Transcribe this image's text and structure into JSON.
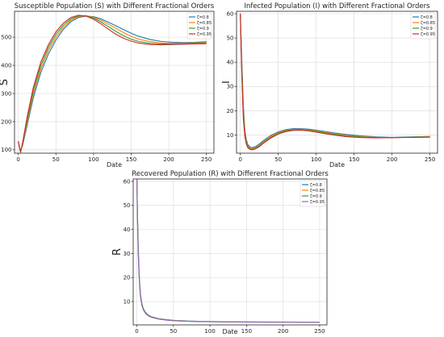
{
  "chart_data": [
    {
      "type": "line",
      "title": "Susceptible Population (S) with Different Fractional Orders",
      "xlabel": "Date",
      "ylabel": "S",
      "xlim": [
        -5,
        260
      ],
      "ylim": [
        88,
        592
      ],
      "xticks": [
        0,
        50,
        100,
        150,
        200,
        250
      ],
      "yticks": [
        100,
        200,
        300,
        400,
        500
      ],
      "grid": true,
      "legend": "top-right",
      "series": [
        {
          "name": "ζ=0.8",
          "color": "#1f77b4",
          "x": [
            0,
            3,
            6,
            12,
            20,
            30,
            40,
            50,
            60,
            70,
            80,
            90,
            100,
            110,
            120,
            130,
            140,
            150,
            160,
            175,
            190,
            205,
            220,
            235,
            250
          ],
          "y": [
            130,
            95,
            118,
            190,
            285,
            375,
            440,
            490,
            528,
            555,
            570,
            575,
            573,
            565,
            553,
            540,
            527,
            514,
            503,
            492,
            485,
            482,
            481,
            482,
            484
          ]
        },
        {
          "name": "ζ=0.85",
          "color": "#ff7f0e",
          "x": [
            0,
            3,
            6,
            12,
            20,
            30,
            40,
            50,
            60,
            70,
            80,
            90,
            100,
            110,
            120,
            130,
            140,
            150,
            160,
            175,
            190,
            205,
            220,
            235,
            250
          ],
          "y": [
            130,
            93,
            122,
            200,
            298,
            388,
            452,
            500,
            535,
            560,
            573,
            576,
            571,
            560,
            546,
            531,
            516,
            503,
            493,
            484,
            479,
            478,
            479,
            480,
            481
          ]
        },
        {
          "name": "ζ=0.9",
          "color": "#2ca02c",
          "x": [
            0,
            3,
            6,
            12,
            20,
            30,
            40,
            50,
            60,
            70,
            80,
            90,
            100,
            110,
            120,
            130,
            140,
            150,
            160,
            175,
            190,
            205,
            220,
            235,
            250
          ],
          "y": [
            130,
            92,
            126,
            210,
            310,
            400,
            463,
            510,
            543,
            565,
            576,
            576,
            568,
            554,
            537,
            520,
            505,
            493,
            485,
            478,
            476,
            476,
            477,
            478,
            479
          ]
        },
        {
          "name": "ζ=0.95",
          "color": "#d62728",
          "x": [
            0,
            3,
            6,
            12,
            20,
            30,
            40,
            50,
            60,
            70,
            80,
            90,
            100,
            110,
            120,
            130,
            140,
            150,
            160,
            175,
            190,
            205,
            220,
            235,
            250
          ],
          "y": [
            130,
            90,
            130,
            220,
            322,
            412,
            473,
            519,
            550,
            570,
            578,
            575,
            564,
            547,
            528,
            510,
            496,
            486,
            479,
            474,
            473,
            474,
            475,
            476,
            477
          ]
        }
      ]
    },
    {
      "type": "line",
      "title": "Infected Population (I) with Different Fractional Orders",
      "xlabel": "Date",
      "ylabel": "I",
      "xlim": [
        -5,
        260
      ],
      "ylim": [
        2.5,
        61
      ],
      "xticks": [
        0,
        50,
        100,
        150,
        200,
        250
      ],
      "yticks": [
        10,
        20,
        30,
        40,
        50,
        60
      ],
      "grid": true,
      "legend": "top-right",
      "series": [
        {
          "name": "ζ=0.8",
          "color": "#1f77b4",
          "x": [
            0,
            2,
            4,
            6,
            8,
            10,
            13,
            16,
            20,
            25,
            30,
            40,
            50,
            60,
            70,
            80,
            90,
            100,
            110,
            125,
            140,
            160,
            180,
            200,
            225,
            250
          ],
          "y": [
            60,
            40,
            22,
            12,
            8,
            6,
            5,
            4.8,
            5.2,
            6.3,
            7.6,
            9.8,
            11.3,
            12.2,
            12.6,
            12.6,
            12.4,
            12.0,
            11.5,
            10.8,
            10.2,
            9.6,
            9.2,
            9.0,
            9.2,
            9.4
          ]
        },
        {
          "name": "ζ=0.85",
          "color": "#ff7f0e",
          "x": [
            0,
            2,
            4,
            6,
            8,
            10,
            13,
            16,
            20,
            25,
            30,
            40,
            50,
            60,
            70,
            80,
            90,
            100,
            110,
            125,
            140,
            160,
            180,
            200,
            225,
            250
          ],
          "y": [
            60,
            38,
            20,
            11,
            7.2,
            5.4,
            4.5,
            4.4,
            4.8,
            5.8,
            7.1,
            9.4,
            11.0,
            11.9,
            12.3,
            12.4,
            12.1,
            11.7,
            11.2,
            10.5,
            9.9,
            9.3,
            9.0,
            8.9,
            9.1,
            9.3
          ]
        },
        {
          "name": "ζ=0.9",
          "color": "#2ca02c",
          "x": [
            0,
            2,
            4,
            6,
            8,
            10,
            13,
            16,
            20,
            25,
            30,
            40,
            50,
            60,
            70,
            80,
            90,
            100,
            110,
            125,
            140,
            160,
            180,
            200,
            225,
            250
          ],
          "y": [
            60,
            36,
            18,
            10,
            6.6,
            5.0,
            4.2,
            4.1,
            4.5,
            5.5,
            6.8,
            9.0,
            10.7,
            11.7,
            12.1,
            12.2,
            11.9,
            11.4,
            10.9,
            10.2,
            9.6,
            9.1,
            8.9,
            8.9,
            9.1,
            9.2
          ]
        },
        {
          "name": "ζ=0.95",
          "color": "#d62728",
          "x": [
            0,
            2,
            4,
            6,
            8,
            10,
            13,
            16,
            20,
            25,
            30,
            40,
            50,
            60,
            70,
            80,
            90,
            100,
            110,
            125,
            140,
            160,
            180,
            200,
            225,
            250
          ],
          "y": [
            60,
            34,
            16.5,
            9.2,
            6.1,
            4.7,
            4.0,
            3.9,
            4.3,
            5.2,
            6.5,
            8.7,
            10.4,
            11.4,
            11.9,
            12.0,
            11.7,
            11.2,
            10.6,
            9.9,
            9.3,
            8.9,
            8.8,
            8.9,
            9.0,
            9.1
          ]
        }
      ]
    },
    {
      "type": "line",
      "title": "Recovered Population (R) with Different Fractional Orders",
      "xlabel": "Date",
      "ylabel": "R",
      "xlim": [
        -5,
        260
      ],
      "ylim": [
        0.3,
        61
      ],
      "xticks": [
        0,
        50,
        100,
        150,
        200,
        250
      ],
      "yticks": [
        10,
        20,
        30,
        40,
        50,
        60
      ],
      "grid": true,
      "legend": "top-right",
      "series": [
        {
          "name": "ζ=0.8",
          "color": "#1f77b4",
          "x": [
            0,
            1,
            2,
            3,
            4,
            5,
            7,
            9,
            12,
            16,
            20,
            30,
            40,
            50,
            70,
            90,
            110,
            140,
            170,
            200,
            230,
            250
          ],
          "y": [
            61,
            45,
            32,
            23,
            17,
            13,
            9,
            7,
            5.4,
            4.3,
            3.7,
            2.9,
            2.5,
            2.2,
            1.9,
            1.75,
            1.65,
            1.55,
            1.5,
            1.48,
            1.47,
            1.47
          ]
        },
        {
          "name": "ζ=0.85",
          "color": "#ff7f0e",
          "x": [
            0,
            1,
            2,
            3,
            4,
            5,
            7,
            9,
            12,
            16,
            20,
            30,
            40,
            50,
            70,
            90,
            110,
            140,
            170,
            200,
            230,
            250
          ],
          "y": [
            61,
            44,
            31,
            22,
            16.4,
            12.5,
            8.7,
            6.8,
            5.2,
            4.2,
            3.6,
            2.8,
            2.4,
            2.15,
            1.85,
            1.7,
            1.62,
            1.52,
            1.48,
            1.46,
            1.45,
            1.45
          ]
        },
        {
          "name": "ζ=0.9",
          "color": "#2ca02c",
          "x": [
            0,
            1,
            2,
            3,
            4,
            5,
            7,
            9,
            12,
            16,
            20,
            30,
            40,
            50,
            70,
            90,
            110,
            140,
            170,
            200,
            230,
            250
          ],
          "y": [
            61,
            43,
            30,
            21.5,
            16,
            12.2,
            8.5,
            6.6,
            5.1,
            4.1,
            3.5,
            2.75,
            2.35,
            2.1,
            1.82,
            1.68,
            1.6,
            1.5,
            1.46,
            1.44,
            1.43,
            1.43
          ]
        },
        {
          "name": "ζ=0.95",
          "color": "#9467bd",
          "x": [
            0,
            1,
            2,
            3,
            4,
            5,
            7,
            9,
            12,
            16,
            20,
            30,
            40,
            50,
            70,
            90,
            110,
            140,
            170,
            200,
            230,
            250
          ],
          "y": [
            61,
            42,
            29,
            21,
            15.6,
            12,
            8.3,
            6.5,
            5.0,
            4.0,
            3.45,
            2.7,
            2.3,
            2.05,
            1.8,
            1.66,
            1.58,
            1.49,
            1.45,
            1.43,
            1.42,
            1.42
          ]
        }
      ]
    }
  ]
}
